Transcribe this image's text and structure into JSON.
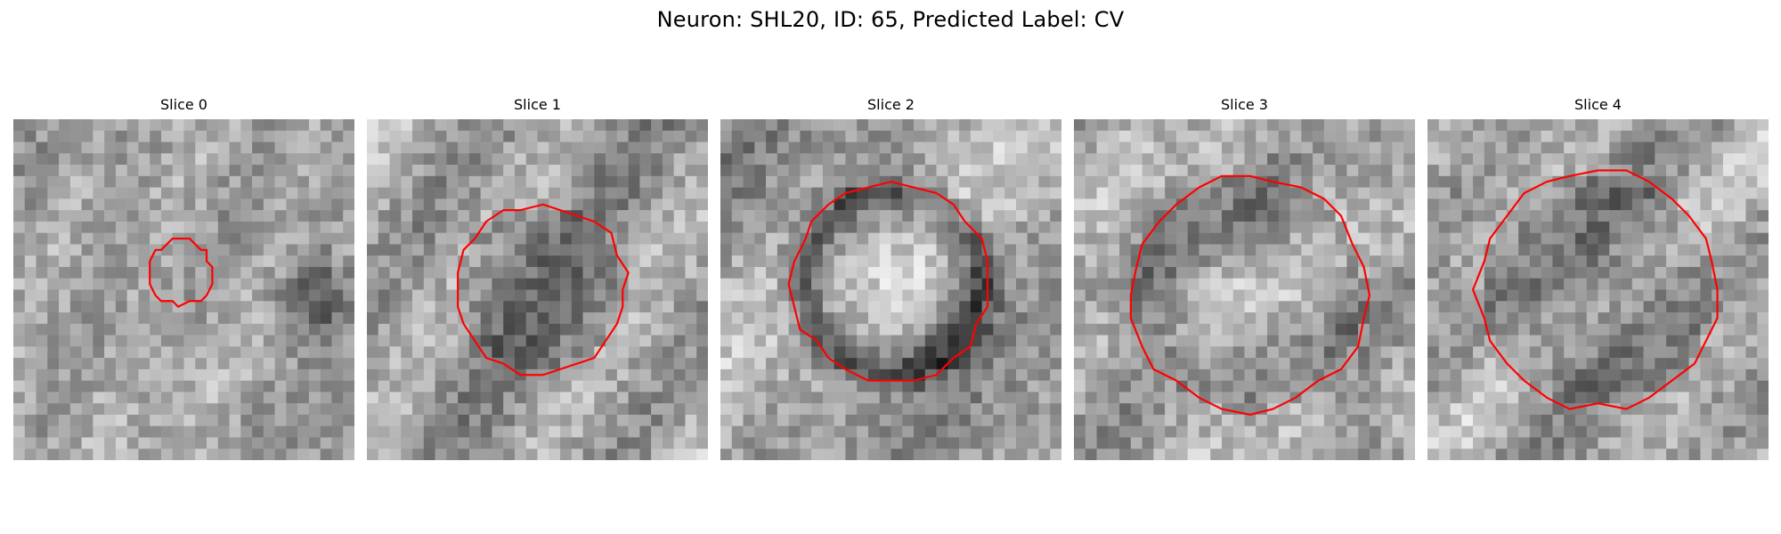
{
  "figure": {
    "title": "Neuron: SHL20, ID: 65, Predicted Label: CV"
  },
  "panels": [
    {
      "title": "Slice 0",
      "seed": 11,
      "contour_radius": 0.19,
      "contour_center": [
        0.49,
        0.45
      ],
      "dark_ring": false,
      "bright_center": false,
      "dark_blob": true
    },
    {
      "title": "Slice 1",
      "seed": 23,
      "contour_radius": 0.5,
      "contour_center": [
        0.51,
        0.5
      ],
      "dark_ring": false,
      "bright_center": false,
      "dark_blob": false
    },
    {
      "title": "Slice 2",
      "seed": 37,
      "contour_radius": 0.58,
      "contour_center": [
        0.5,
        0.48
      ],
      "dark_ring": true,
      "bright_center": true,
      "dark_blob": false
    },
    {
      "title": "Slice 3",
      "seed": 41,
      "contour_radius": 0.69,
      "contour_center": [
        0.51,
        0.51
      ],
      "dark_ring": false,
      "bright_center": true,
      "dark_blob": false
    },
    {
      "title": "Slice 4",
      "seed": 53,
      "contour_radius": 0.7,
      "contour_center": [
        0.5,
        0.5
      ],
      "dark_ring": false,
      "bright_center": false,
      "dark_blob": false
    }
  ],
  "colors": {
    "contour": "#ff0000"
  }
}
